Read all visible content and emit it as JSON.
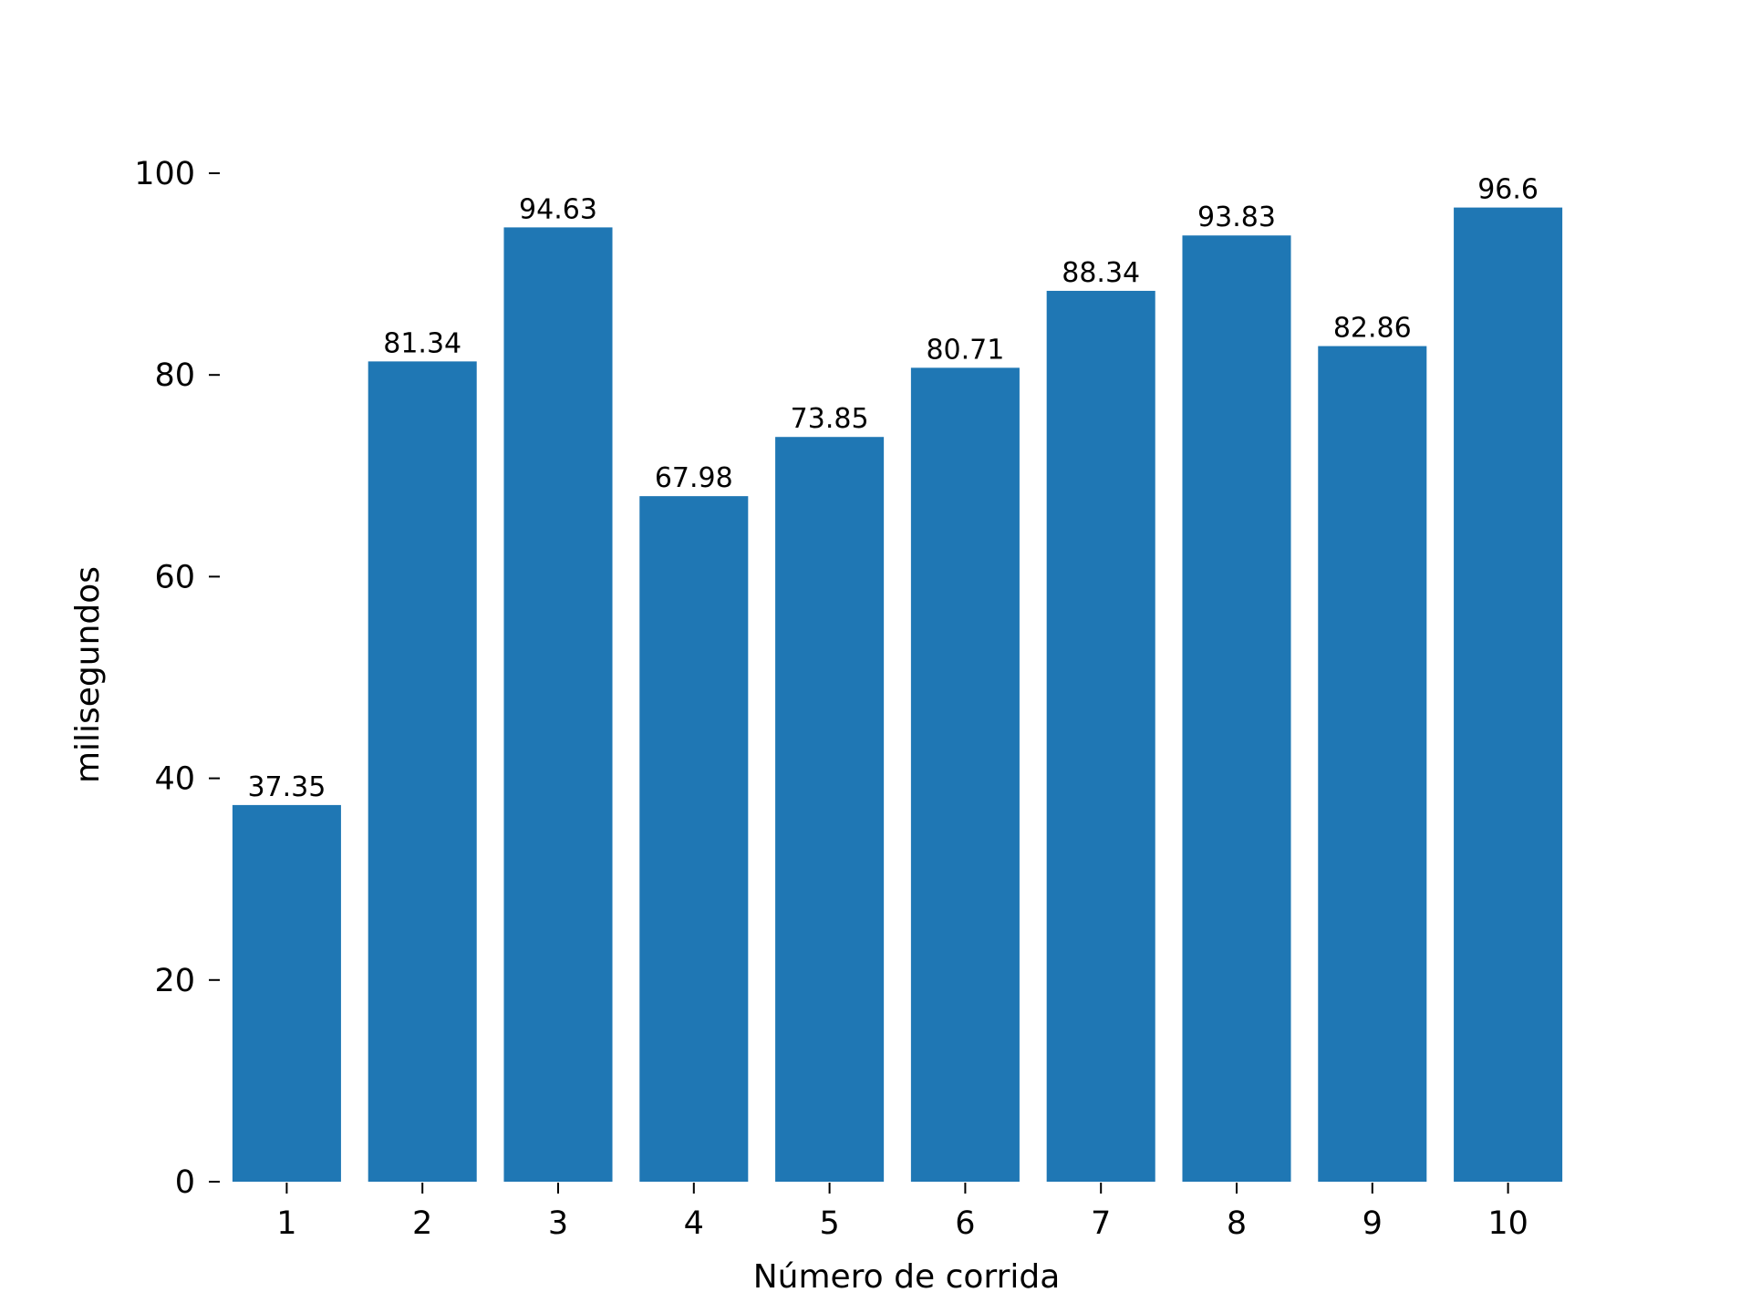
{
  "chart_data": {
    "type": "bar",
    "title": "",
    "xlabel": "Número de corrida",
    "ylabel": "milisegundos",
    "categories": [
      "1",
      "2",
      "3",
      "4",
      "5",
      "6",
      "7",
      "8",
      "9",
      "10"
    ],
    "values": [
      37.35,
      81.34,
      94.63,
      67.98,
      73.85,
      80.71,
      88.34,
      93.83,
      82.86,
      96.6
    ],
    "data_labels": [
      "37.35",
      "81.34",
      "94.63",
      "67.98",
      "73.85",
      "80.71",
      "88.34",
      "93.83",
      "82.86",
      "96.6"
    ],
    "yticks": [
      0,
      20,
      40,
      60,
      80,
      100
    ],
    "ylim": [
      0,
      100
    ],
    "grid": false,
    "legend": "none",
    "bar_color": "#1f77b4"
  }
}
